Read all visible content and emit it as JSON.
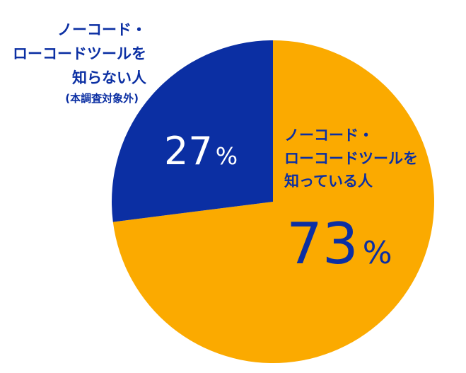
{
  "chart_data": {
    "type": "pie",
    "slices": [
      {
        "label_lines": [
          "ノーコード・",
          "ローコードツールを",
          "知っている人"
        ],
        "value": 73,
        "pct_number": "73",
        "pct_sign": "%",
        "color": "#FBAA00",
        "text_color": "#0B2FA3"
      },
      {
        "label_lines": [
          "ノーコード・",
          "ローコードツールを",
          "知らない人"
        ],
        "sublabel": "(本調査対象外)",
        "value": 27,
        "pct_number": "27",
        "pct_sign": "%",
        "color": "#0B2FA3",
        "text_color": "#ffffff",
        "label_color": "#0B2FA3"
      }
    ]
  }
}
